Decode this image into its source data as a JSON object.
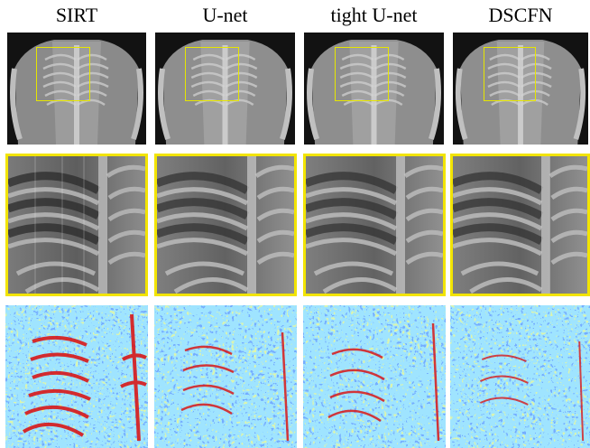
{
  "columns": [
    {
      "label": "SIRT"
    },
    {
      "label": "U-net"
    },
    {
      "label": "tight U-net"
    },
    {
      "label": "DSCFN"
    }
  ],
  "rows": [
    "overview",
    "zoomed-crop",
    "error-map"
  ],
  "colors": {
    "zoom_box": "#e6e600",
    "crop_border": "#f2e400",
    "error_map_palette": [
      "#1030c0",
      "#2f6cff",
      "#58c8ff",
      "#b8e86a",
      "#e8e040",
      "#d81818"
    ]
  }
}
